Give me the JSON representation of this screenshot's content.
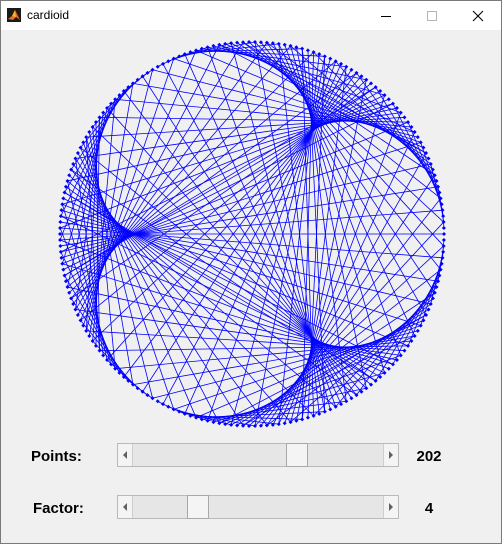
{
  "window": {
    "title": "cardioid"
  },
  "controls": {
    "points": {
      "label": "Points:",
      "value": "202",
      "fraction": 0.67
    },
    "factor": {
      "label": "Factor:",
      "value": "4",
      "fraction": 0.24
    }
  },
  "plot": {
    "points": 202,
    "factor": 4,
    "color": "#0000ff"
  }
}
